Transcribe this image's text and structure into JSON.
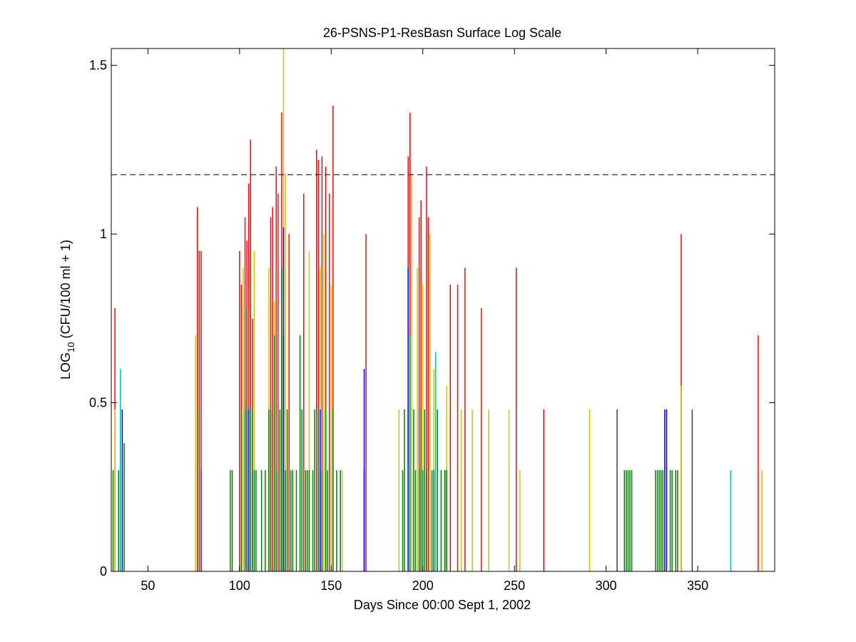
{
  "chart_data": {
    "type": "bar",
    "title": "26-PSNS-P1-ResBasn Surface Log Scale",
    "xlabel": "Days Since 00:00 Sept 1, 2002",
    "ylabel_main": "LOG",
    "ylabel_sub": "10",
    "ylabel_rest": " (CFU/100 ml + 1)",
    "xlim": [
      30,
      392
    ],
    "ylim": [
      0,
      1.55
    ],
    "xticks": [
      50,
      100,
      150,
      200,
      250,
      300,
      350
    ],
    "yticks": [
      0,
      0.5,
      1,
      1.5
    ],
    "ytick_labels": [
      "0",
      "0.5",
      "1",
      "1.5"
    ],
    "reference_line": {
      "y": 1.176,
      "style": "dashed",
      "color": "#000000"
    },
    "grid": false,
    "colors": {
      "red": "#ff0000",
      "green": "#008000",
      "yellow": "#c8c800",
      "blue": "#0000ff",
      "cyan": "#00bfbf",
      "magenta": "#bf00bf",
      "dark": "#404040"
    },
    "series": [
      {
        "color_key": "red",
        "x": [
          32,
          77,
          78,
          79,
          100,
          101,
          103,
          104,
          105,
          106,
          107,
          117,
          118,
          120,
          121,
          123,
          127,
          135,
          142,
          143,
          145,
          147,
          149,
          151,
          169,
          192,
          193,
          198,
          199,
          202,
          203,
          215,
          219,
          223,
          232,
          251,
          266,
          341,
          383
        ],
        "y": [
          0.78,
          1.08,
          0.95,
          0.95,
          0.95,
          0.85,
          1.05,
          0.98,
          1.15,
          1.28,
          0.75,
          1.05,
          1.08,
          1.2,
          1.12,
          1.36,
          1.0,
          1.12,
          1.25,
          1.22,
          1.23,
          1.2,
          1.12,
          1.38,
          1.0,
          1.23,
          1.36,
          1.05,
          1.1,
          1.2,
          1.05,
          0.85,
          0.85,
          0.9,
          0.78,
          0.9,
          0.48,
          1.0,
          0.7
        ]
      },
      {
        "color_key": "yellow",
        "x": [
          32,
          76,
          102,
          108,
          116,
          119,
          124,
          125,
          138,
          144,
          146,
          150,
          156,
          187,
          194,
          197,
          200,
          204,
          206,
          213,
          221,
          227,
          236,
          247,
          253,
          291,
          341,
          385
        ],
        "y": [
          0.48,
          0.7,
          0.9,
          0.95,
          0.9,
          0.8,
          1.55,
          1.18,
          0.95,
          0.9,
          1.0,
          0.85,
          0.3,
          0.48,
          1.18,
          0.9,
          0.85,
          1.0,
          0.6,
          0.55,
          0.48,
          0.48,
          0.48,
          0.48,
          0.3,
          0.48,
          0.55,
          0.3
        ]
      },
      {
        "color_key": "green",
        "x": [
          31,
          34,
          35,
          37,
          78,
          79,
          95,
          96,
          101,
          103,
          104,
          105,
          106,
          107,
          108,
          109,
          112,
          114,
          116,
          117,
          119,
          120,
          122,
          123,
          124,
          125,
          126,
          128,
          129,
          131,
          133,
          134,
          136,
          137,
          138,
          140,
          141,
          143,
          145,
          147,
          148,
          151,
          153,
          155,
          168,
          189,
          190,
          192,
          193,
          195,
          196,
          198,
          199,
          200,
          201,
          202,
          205,
          206,
          208,
          210,
          212,
          212,
          213,
          310,
          311,
          312,
          313,
          314,
          327,
          328,
          329,
          330,
          331,
          335,
          336,
          338,
          339
        ],
        "y": [
          0.3,
          0.3,
          0.48,
          0.38,
          0.48,
          0.3,
          0.3,
          0.3,
          0.48,
          0.48,
          0.78,
          0.48,
          0.48,
          0.48,
          0.3,
          0.3,
          0.3,
          0.3,
          0.48,
          0.48,
          0.7,
          0.3,
          0.48,
          0.9,
          0.7,
          0.3,
          0.48,
          0.3,
          0.3,
          0.3,
          0.7,
          0.48,
          0.3,
          0.3,
          0.3,
          0.3,
          0.48,
          0.48,
          0.3,
          0.48,
          0.3,
          0.48,
          0.3,
          0.3,
          0.3,
          0.3,
          0.48,
          0.48,
          0.7,
          0.48,
          0.3,
          0.3,
          0.48,
          0.3,
          0.48,
          0.3,
          0.3,
          0.3,
          0.48,
          0.3,
          0.3,
          0.3,
          0.3,
          0.3,
          0.3,
          0.3,
          0.3,
          0.3,
          0.3,
          0.3,
          0.3,
          0.3,
          0.3,
          0.3,
          0.3,
          0.3,
          0.3
        ]
      },
      {
        "color_key": "blue",
        "x": [
          36,
          105,
          124,
          144,
          168,
          192,
          332,
          333
        ],
        "y": [
          0.48,
          0.48,
          1.02,
          0.48,
          0.6,
          0.9,
          0.48,
          0.48
        ]
      },
      {
        "color_key": "cyan",
        "x": [
          35,
          207,
          368
        ],
        "y": [
          0.6,
          0.65,
          0.3
        ]
      },
      {
        "color_key": "magenta",
        "x": [
          79
        ],
        "y": [
          0.3
        ]
      },
      {
        "color_key": "dark",
        "x": [
          306,
          347
        ],
        "y": [
          0.48,
          0.48
        ]
      }
    ]
  }
}
